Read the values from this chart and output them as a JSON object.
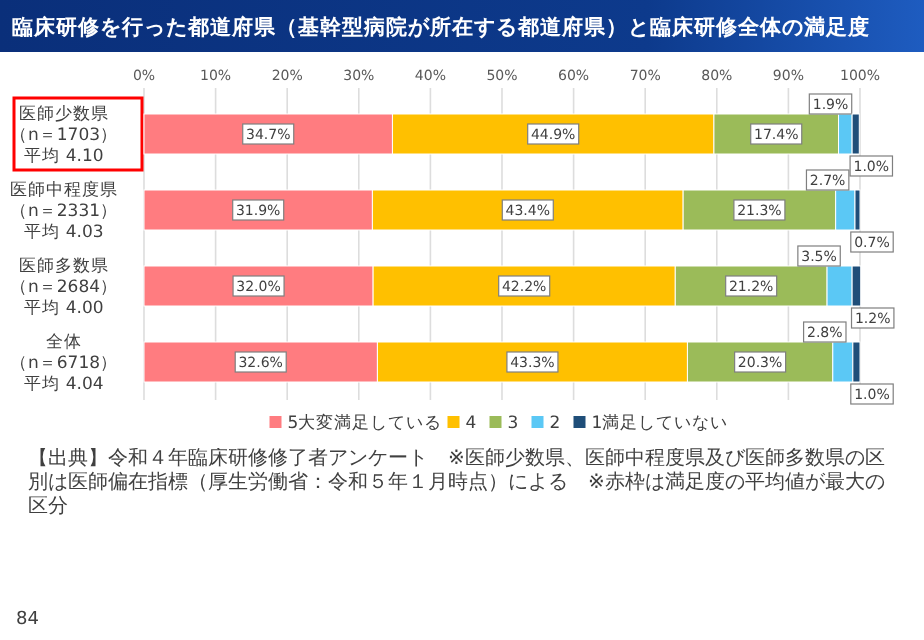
{
  "chart_data": {
    "type": "bar",
    "orientation": "horizontal",
    "stacked": true,
    "title": "臨床研修を行った都道府県（基幹型病院が所在する都道府県）と臨床研修全体の満足度",
    "categories": [
      "医師少数県（n＝1703）平均 4.10",
      "医師中程度県（n＝2331）平均 4.03",
      "医師多数県（n＝2684）平均 4.00",
      "全体（n＝6718）平均 4.04"
    ],
    "series": [
      {
        "name": "5大変満足している",
        "color": "#ff7c80",
        "values": [
          34.7,
          31.9,
          32.0,
          32.6
        ],
        "value_labels": [
          "34.7%",
          "31.9%",
          "32.0%",
          "32.6%"
        ]
      },
      {
        "name": "4",
        "color": "#ffc000",
        "values": [
          44.9,
          43.4,
          42.2,
          43.3
        ],
        "value_labels": [
          "44.9%",
          "43.4%",
          "42.2%",
          "43.3%"
        ]
      },
      {
        "name": "3",
        "color": "#9bbb59",
        "values": [
          17.4,
          21.3,
          21.2,
          20.3
        ],
        "value_labels": [
          "17.4%",
          "21.3%",
          "21.2%",
          "20.3%"
        ]
      },
      {
        "name": "2",
        "color": "#5bc8f5",
        "values": [
          1.9,
          2.7,
          3.5,
          2.8
        ],
        "value_labels": [
          "1.9%",
          "2.7%",
          "3.5%",
          "2.8%"
        ]
      },
      {
        "name": "1満足していない",
        "color": "#1f4e79",
        "values": [
          1.0,
          0.7,
          1.2,
          1.0
        ],
        "value_labels": [
          "1.0%",
          "0.7%",
          "1.2%",
          "1.0%"
        ]
      }
    ],
    "xlim": [
      0,
      100
    ],
    "xticks": [
      {
        "value": 0,
        "label": "0%"
      },
      {
        "value": 10,
        "label": "10%"
      },
      {
        "value": 20,
        "label": "20%"
      },
      {
        "value": 30,
        "label": "30%"
      },
      {
        "value": 40,
        "label": "40%"
      },
      {
        "value": 50,
        "label": "50%"
      },
      {
        "value": 60,
        "label": "60%"
      },
      {
        "value": 70,
        "label": "70%"
      },
      {
        "value": 80,
        "label": "80%"
      },
      {
        "value": 90,
        "label": "90%"
      },
      {
        "value": 100,
        "label": "100%"
      }
    ],
    "grid": "x",
    "legend": "bottom",
    "annotations": [
      "【出典】令和４年臨床研修修了者アンケート　※医師少数県、医師中程度県及び医師多数県の区別は医師偏在指標（厚生労働省：令和５年１月時点）による　※赤枠は満足度の平均値が最大の区分",
      "84"
    ]
  }
}
